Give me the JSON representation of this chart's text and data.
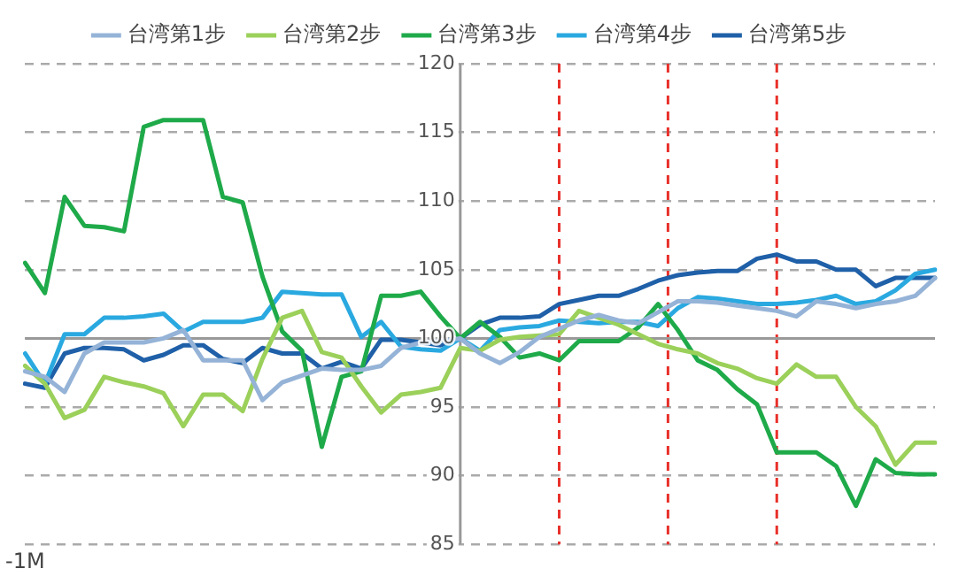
{
  "chart_data": {
    "type": "line",
    "categories": [
      "-1M",
      null,
      null,
      null,
      null,
      null,
      null,
      null,
      null,
      null,
      null,
      null,
      null,
      null,
      null,
      null,
      null,
      null,
      null,
      null,
      null,
      null,
      null,
      null,
      null,
      null,
      null,
      null,
      null,
      null,
      null,
      null,
      null,
      null,
      null,
      null,
      null,
      null,
      null,
      null,
      null,
      null,
      null,
      null,
      null,
      null,
      null
    ],
    "ylim": [
      85,
      120
    ],
    "yticks": [
      85,
      90,
      95,
      100,
      105,
      110,
      115,
      120
    ],
    "grid": "y",
    "legend": "top",
    "marker": "none",
    "line_style": "solid",
    "ref_lines": [
      {
        "axis": "y",
        "value": 100,
        "color": "#999999",
        "line_style": "solid"
      }
    ],
    "series": [
      {
        "name": "台湾第1步",
        "color": "#95b3d7",
        "values": [
          97.6,
          97.2,
          96.1,
          98.9,
          99.7,
          99.7,
          99.7,
          100,
          100.6,
          98.4,
          98.4,
          98.4,
          95.5,
          96.8,
          97.3,
          97.8,
          97.7,
          97.7,
          98,
          99.3,
          99.7,
          99.8,
          100,
          98.9,
          98.2,
          99,
          100.1,
          100.7,
          101.3,
          101.7,
          101.3,
          101.1,
          101.9,
          102.7,
          102.7,
          102.6,
          102.4,
          102.2,
          102,
          101.6,
          102.7,
          102.5,
          102.2,
          102.5,
          102.7,
          103.1,
          104.4
        ]
      },
      {
        "name": "台湾第2步",
        "color": "#9bd05a",
        "values": [
          98,
          96.7,
          94.2,
          94.8,
          97.2,
          96.8,
          96.5,
          96,
          93.6,
          95.9,
          95.9,
          94.7,
          98.5,
          101.5,
          102,
          99,
          98.6,
          96.5,
          94.6,
          95.9,
          96.1,
          96.4,
          99.3,
          99.1,
          99.9,
          100.1,
          100.2,
          100.3,
          102,
          101.5,
          101,
          100.3,
          99.6,
          99.2,
          98.9,
          98.2,
          97.8,
          97.1,
          96.7,
          98.1,
          97.2,
          97.2,
          95,
          93.6,
          90.8,
          92.4,
          92.4
        ]
      },
      {
        "name": "台湾第3步",
        "color": "#1faa4a",
        "values": [
          105.5,
          103.3,
          110.3,
          108.2,
          108.1,
          107.8,
          115.4,
          115.9,
          115.9,
          115.9,
          110.3,
          109.9,
          104.5,
          100.5,
          99.1,
          92.1,
          97.2,
          97.6,
          103.1,
          103.1,
          103.4,
          101.6,
          100,
          101.2,
          100.1,
          98.6,
          98.9,
          98.4,
          99.8,
          99.8,
          99.8,
          100.8,
          102.5,
          100.6,
          98.4,
          97.7,
          96.3,
          95.2,
          91.7,
          91.7,
          91.7,
          90.7,
          87.8,
          91.2,
          90.2,
          90.1,
          90.1
        ]
      },
      {
        "name": "台湾第4步",
        "color": "#2aa9e0",
        "values": [
          98.9,
          96.7,
          100.3,
          100.3,
          101.5,
          101.5,
          101.6,
          101.8,
          100.5,
          101.2,
          101.2,
          101.2,
          101.5,
          103.4,
          103.3,
          103.2,
          103.2,
          100.1,
          101.2,
          99.4,
          99.2,
          99.1,
          100,
          99.1,
          100.6,
          100.8,
          100.9,
          101.3,
          101.2,
          101.1,
          101.2,
          101.2,
          100.9,
          102.2,
          103,
          102.9,
          102.7,
          102.5,
          102.5,
          102.6,
          102.8,
          103.1,
          102.5,
          102.7,
          103.5,
          104.7,
          105
        ]
      },
      {
        "name": "台湾第5步",
        "color": "#1f60a8",
        "values": [
          96.7,
          96.4,
          98.9,
          99.3,
          99.3,
          99.2,
          98.4,
          98.8,
          99.5,
          99.5,
          98.5,
          98.2,
          99.3,
          98.9,
          98.9,
          97.8,
          98.3,
          97.8,
          99.9,
          99.9,
          99.7,
          99.5,
          100,
          101,
          101.5,
          101.5,
          101.6,
          102.5,
          102.8,
          103.1,
          103.1,
          103.6,
          104.2,
          104.6,
          104.8,
          104.9,
          104.9,
          105.8,
          106.1,
          105.6,
          105.6,
          105,
          105,
          103.8,
          104.4,
          104.4,
          104.4
        ]
      }
    ]
  }
}
